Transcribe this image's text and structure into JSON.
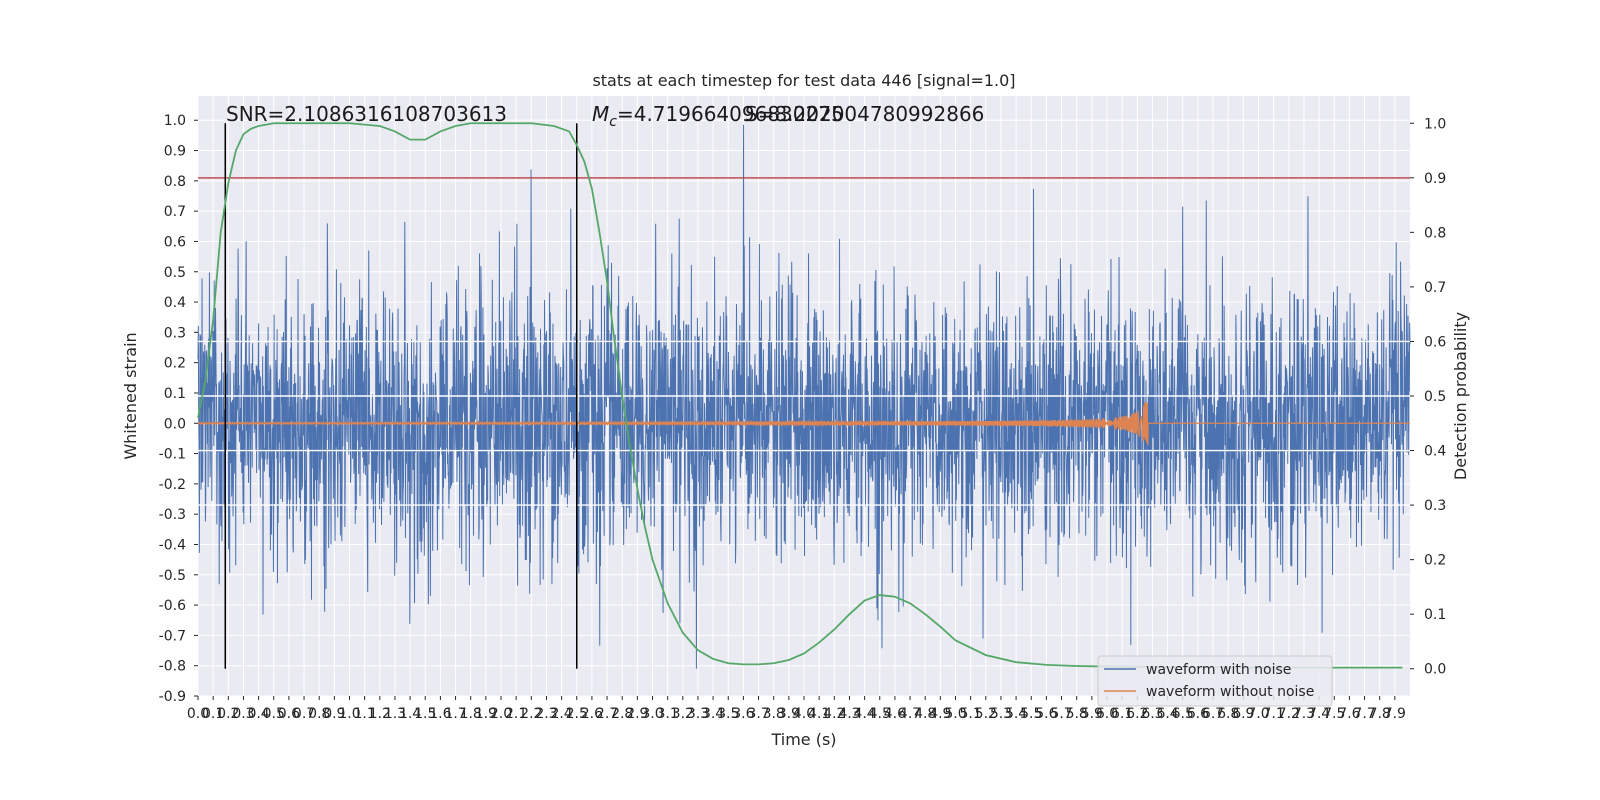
{
  "chart_data": {
    "type": "line",
    "title": "stats at each timestep for test data 446 [signal=1.0]",
    "xlabel": "Time (s)",
    "ylabel_left": "Whitened strain",
    "ylabel_right": "Detection probability",
    "xlim": [
      0.0,
      8.0
    ],
    "ylim_left": [
      -0.9,
      1.08
    ],
    "ylim_right": [
      -0.05,
      1.05
    ],
    "x_ticks": [
      0.0,
      0.1,
      0.2,
      0.3,
      0.4,
      0.5,
      0.6,
      0.7,
      0.8,
      0.9,
      1.0,
      1.1,
      1.2,
      1.3,
      1.4,
      1.5,
      1.6,
      1.7,
      1.8,
      1.9,
      2.0,
      2.1,
      2.2,
      2.3,
      2.4,
      2.5,
      2.6,
      2.7,
      2.8,
      2.9,
      3.0,
      3.1,
      3.2,
      3.3,
      3.4,
      3.5,
      3.6,
      3.7,
      3.8,
      3.9,
      4.0,
      4.1,
      4.2,
      4.3,
      4.4,
      4.5,
      4.6,
      4.7,
      4.8,
      4.9,
      5.0,
      5.1,
      5.2,
      5.3,
      5.4,
      5.5,
      5.6,
      5.7,
      5.8,
      5.9,
      6.0,
      6.1,
      6.2,
      6.3,
      6.4,
      6.5,
      6.6,
      6.7,
      6.8,
      6.9,
      7.0,
      7.1,
      7.2,
      7.3,
      7.4,
      7.5,
      7.6,
      7.7,
      7.8,
      7.9
    ],
    "y_ticks_left": [
      -0.9,
      -0.8,
      -0.7,
      -0.6,
      -0.5,
      -0.4,
      -0.3,
      -0.2,
      -0.1,
      0.0,
      0.1,
      0.2,
      0.3,
      0.4,
      0.5,
      0.6,
      0.7,
      0.8,
      0.9,
      1.0
    ],
    "y_ticks_right": [
      0.0,
      0.1,
      0.2,
      0.3,
      0.4,
      0.5,
      0.6,
      0.7,
      0.8,
      0.9,
      1.0
    ],
    "grid": true,
    "legend_position": "lower-right",
    "legend": [
      "waveform with noise",
      "waveform without noise"
    ],
    "annotations": {
      "snr": "SNR=2.1086316108703613",
      "mc": "=4.719664096830275",
      "mc_symbol": "M",
      "mc_subscript": "c",
      "extra": "S=8.202004780992866"
    },
    "vertical_lines_x": [
      0.18,
      2.5
    ],
    "threshold_right": 0.9,
    "noise_envelope": {
      "typical_amplitude": 0.4,
      "max_positive": 0.99,
      "min_negative": -0.81
    },
    "clean_waveform": {
      "merger_time": 6.27,
      "max_amplitude": 0.07
    },
    "detection_probability": {
      "x": [
        0.0,
        0.05,
        0.1,
        0.15,
        0.2,
        0.25,
        0.3,
        0.35,
        0.4,
        0.5,
        0.6,
        0.8,
        1.0,
        1.2,
        1.3,
        1.4,
        1.5,
        1.6,
        1.7,
        1.8,
        2.0,
        2.2,
        2.35,
        2.45,
        2.5,
        2.55,
        2.6,
        2.65,
        2.7,
        2.75,
        2.8,
        2.85,
        2.9,
        2.95,
        3.0,
        3.1,
        3.2,
        3.3,
        3.4,
        3.5,
        3.6,
        3.7,
        3.8,
        3.9,
        4.0,
        4.1,
        4.2,
        4.3,
        4.4,
        4.5,
        4.6,
        4.7,
        4.8,
        4.9,
        5.0,
        5.2,
        5.4,
        5.6,
        5.8,
        6.0,
        6.5,
        7.0,
        7.5,
        7.95
      ],
      "y": [
        0.46,
        0.53,
        0.64,
        0.8,
        0.89,
        0.95,
        0.98,
        0.99,
        0.995,
        1.0,
        1.0,
        1.0,
        1.0,
        0.995,
        0.985,
        0.97,
        0.97,
        0.985,
        0.995,
        1.0,
        1.0,
        1.0,
        0.995,
        0.985,
        0.96,
        0.93,
        0.88,
        0.8,
        0.71,
        0.6,
        0.5,
        0.41,
        0.33,
        0.26,
        0.2,
        0.12,
        0.066,
        0.034,
        0.018,
        0.01,
        0.008,
        0.008,
        0.01,
        0.016,
        0.028,
        0.048,
        0.072,
        0.1,
        0.125,
        0.135,
        0.132,
        0.12,
        0.1,
        0.077,
        0.052,
        0.025,
        0.012,
        0.007,
        0.005,
        0.004,
        0.003,
        0.002,
        0.002,
        0.002
      ]
    },
    "colors": {
      "noise": "#4c72b0",
      "clean": "#dd8452",
      "probability": "#55a868",
      "threshold": "#c44e52",
      "vline": "#000000",
      "axes_bg": "#eaeaf2",
      "grid": "#ffffff"
    }
  }
}
